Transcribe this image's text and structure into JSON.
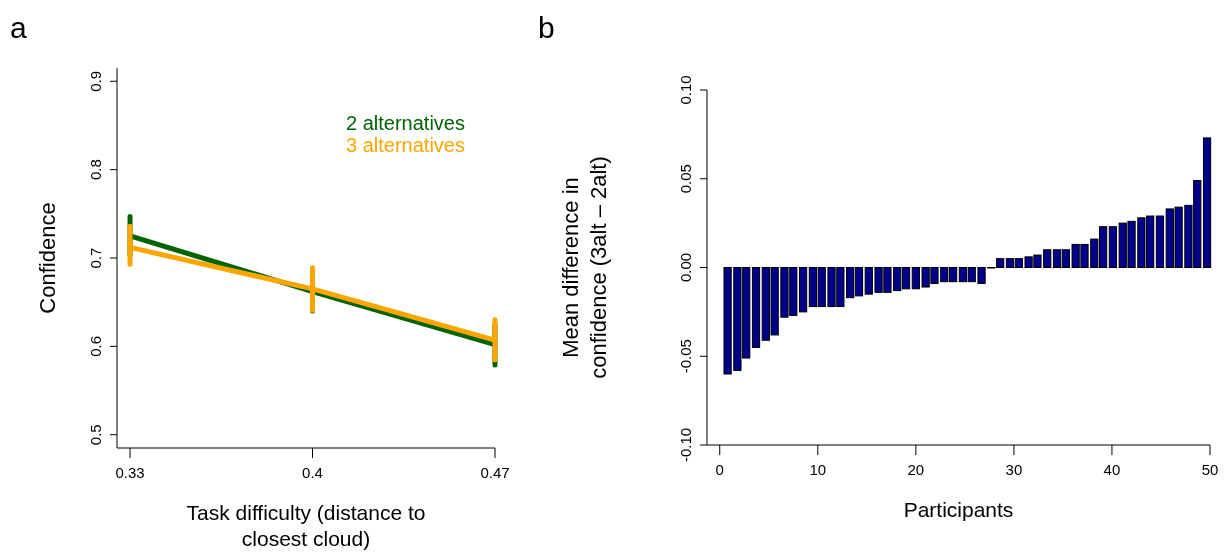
{
  "chart_data": [
    {
      "type": "line",
      "title": "a",
      "xlabel": "Task difficulty (distance to\nclosest cloud)",
      "ylabel": "Confidence",
      "x": [
        0.33,
        0.4,
        0.47
      ],
      "xlim": [
        0.325,
        0.47
      ],
      "xticks": [
        0.33,
        0.4,
        0.47
      ],
      "ylim": [
        0.485,
        0.915
      ],
      "yticks": [
        0.5,
        0.6,
        0.7,
        0.8,
        0.9
      ],
      "legend": "top right",
      "grid": false,
      "marker": "none",
      "line_style": "solid",
      "series": [
        {
          "name": "2 alternatives",
          "color": "#006400",
          "values": [
            0.725,
            0.662,
            0.602
          ],
          "errors": [
            [
              0.703,
              0.747
            ],
            [
              0.64,
              0.685
            ],
            [
              0.579,
              0.625
            ]
          ]
        },
        {
          "name": "3 alternatives",
          "color": "#ffa500",
          "values": [
            0.712,
            0.665,
            0.607
          ],
          "errors": [
            [
              0.693,
              0.736
            ],
            [
              0.641,
              0.689
            ],
            [
              0.585,
              0.63
            ]
          ]
        }
      ]
    },
    {
      "type": "bar",
      "title": "b",
      "xlabel": "Participants",
      "ylabel": "Mean difference in\nconfidence (3alt – 2alt)",
      "xlim": [
        -1.3,
        50
      ],
      "xticks": [
        0,
        10,
        20,
        30,
        40,
        50
      ],
      "ylim": [
        -0.1,
        0.1
      ],
      "yticks": [
        {
          "value": -0.1,
          "label": "-0.10"
        },
        {
          "value": -0.05,
          "label": "-0.05"
        },
        {
          "value": 0,
          "label": "0.00"
        },
        {
          "value": 0.05,
          "label": "0.05"
        },
        {
          "value": 0.1,
          "label": "0.10"
        }
      ],
      "grid": false,
      "x": [
        0.8,
        1.8,
        2.7,
        3.7,
        4.7,
        5.6,
        6.6,
        7.5,
        8.5,
        9.5,
        10.4,
        11.4,
        12.3,
        13.3,
        14.2,
        15.2,
        16.2,
        17.1,
        18.1,
        19.0,
        20.0,
        21.0,
        21.9,
        22.9,
        23.8,
        24.8,
        25.7,
        26.7,
        27.7,
        28.6,
        29.6,
        30.5,
        31.5,
        32.4,
        33.4,
        34.4,
        35.3,
        36.3,
        37.2,
        38.2,
        39.1,
        40.1,
        41.1,
        42.0,
        43.0,
        43.9,
        44.9,
        45.9,
        46.8,
        47.8,
        48.7,
        49.7
      ],
      "series": [
        {
          "color": "#00008b",
          "values": [
            -0.06,
            -0.058,
            -0.051,
            -0.045,
            -0.041,
            -0.038,
            -0.028,
            -0.027,
            -0.025,
            -0.022,
            -0.022,
            -0.022,
            -0.022,
            -0.017,
            -0.016,
            -0.015,
            -0.014,
            -0.014,
            -0.013,
            -0.012,
            -0.012,
            -0.011,
            -0.009,
            -0.008,
            -0.008,
            -0.008,
            -0.008,
            -0.009,
            0,
            0.005,
            0.005,
            0.005,
            0.006,
            0.007,
            0.01,
            0.01,
            0.01,
            0.013,
            0.013,
            0.016,
            0.023,
            0.023,
            0.025,
            0.026,
            0.028,
            0.029,
            0.029,
            0.033,
            0.034,
            0.035,
            0.049,
            0.073
          ]
        }
      ]
    }
  ]
}
